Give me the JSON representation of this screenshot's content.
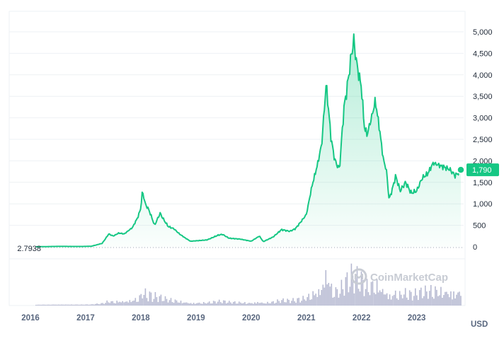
{
  "chart_data": {
    "type": "area",
    "currency": "USD",
    "start_label": "2.7938",
    "current_value_label": "1,790",
    "watermark": "CoinMarketCap",
    "x_ticks": [
      "2016",
      "2017",
      "2018",
      "2019",
      "2020",
      "2021",
      "2022",
      "2023"
    ],
    "y_ticks": [
      "5,000",
      "4,500",
      "4,000",
      "3,500",
      "3,000",
      "2,500",
      "2,000",
      "1,500",
      "1,000",
      "500",
      "0"
    ],
    "ylim": [
      0,
      5000
    ],
    "grid": true,
    "colors": {
      "line": "#16c784",
      "fill": "#16c784",
      "volume": "#a4a8c6",
      "badge": "#16c784"
    },
    "series": [
      {
        "x": [
          2016.1,
          2016.5,
          2016.9,
          2017.1,
          2017.3,
          2017.42,
          2017.5,
          2017.6,
          2017.7,
          2017.85,
          2017.95,
          2018.0,
          2018.03,
          2018.08,
          2018.15,
          2018.25,
          2018.35,
          2018.42,
          2018.5,
          2018.6,
          2018.7,
          2018.8,
          2018.9,
          2019.0,
          2019.2,
          2019.4,
          2019.48,
          2019.6,
          2019.8,
          2020.0,
          2020.15,
          2020.22,
          2020.4,
          2020.55,
          2020.7,
          2020.8,
          2020.9,
          2021.0,
          2021.1,
          2021.2,
          2021.28,
          2021.36,
          2021.45,
          2021.52,
          2021.6,
          2021.68,
          2021.75,
          2021.82,
          2021.86,
          2021.92,
          2022.0,
          2022.05,
          2022.1,
          2022.2,
          2022.25,
          2022.32,
          2022.4,
          2022.45,
          2022.5,
          2022.55,
          2022.62,
          2022.7,
          2022.8,
          2022.9,
          2023.0,
          2023.1,
          2023.2,
          2023.3,
          2023.4,
          2023.5,
          2023.6,
          2023.7,
          2023.8
        ],
        "y": [
          1,
          10,
          8,
          12,
          80,
          300,
          250,
          320,
          300,
          450,
          700,
          900,
          1300,
          1000,
          850,
          500,
          780,
          620,
          470,
          420,
          300,
          210,
          130,
          140,
          160,
          270,
          290,
          200,
          180,
          130,
          250,
          120,
          230,
          400,
          360,
          420,
          580,
          750,
          1400,
          1900,
          2400,
          3800,
          2500,
          2000,
          1800,
          3200,
          3800,
          4500,
          4800,
          4200,
          3700,
          2800,
          2600,
          3100,
          3400,
          2800,
          2000,
          1800,
          1100,
          1300,
          1650,
          1300,
          1500,
          1250,
          1300,
          1600,
          1700,
          1950,
          1900,
          1850,
          1800,
          1650,
          1790
        ]
      }
    ]
  }
}
